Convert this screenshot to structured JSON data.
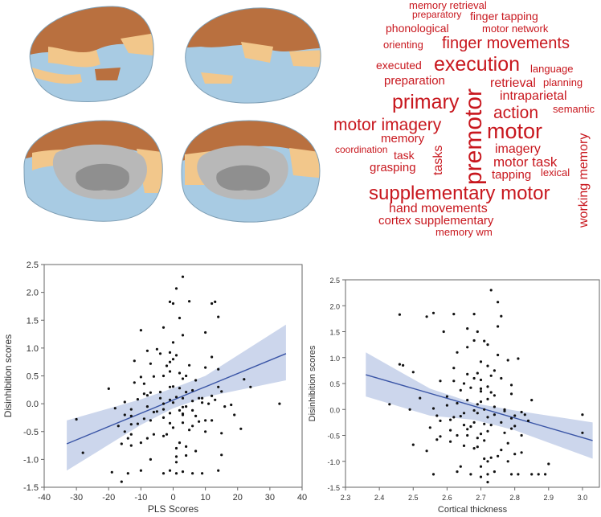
{
  "colors": {
    "dark_orange": "#b9703f",
    "light_orange": "#f2c78b",
    "light_blue": "#a8cbe3",
    "medial_gray": "#b8b8b8",
    "cloud_red": "#c8171e",
    "fit_line": "#3a55a6",
    "ci_band": "#c6d1ea",
    "points": "#111111"
  },
  "brains": {
    "views": [
      {
        "name": "left-lateral"
      },
      {
        "name": "right-lateral"
      },
      {
        "name": "left-medial"
      },
      {
        "name": "right-medial"
      }
    ]
  },
  "word_cloud": [
    {
      "text": "memory retrieval",
      "size": 13
    },
    {
      "text": "preparatory",
      "size": 12
    },
    {
      "text": "finger tapping",
      "size": 14
    },
    {
      "text": "phonological",
      "size": 14
    },
    {
      "text": "motor network",
      "size": 13
    },
    {
      "text": "orienting",
      "size": 13
    },
    {
      "text": "finger movements",
      "size": 20
    },
    {
      "text": "executed",
      "size": 14
    },
    {
      "text": "execution",
      "size": 25
    },
    {
      "text": "language",
      "size": 13
    },
    {
      "text": "preparation",
      "size": 15
    },
    {
      "text": "retrieval",
      "size": 16
    },
    {
      "text": "planning",
      "size": 13
    },
    {
      "text": "intraparietal",
      "size": 16
    },
    {
      "text": "primary",
      "size": 25
    },
    {
      "text": "action",
      "size": 21
    },
    {
      "text": "semantic",
      "size": 13
    },
    {
      "text": "premotor",
      "size": 30
    },
    {
      "text": "motor imagery",
      "size": 21
    },
    {
      "text": "motor",
      "size": 27
    },
    {
      "text": "memory",
      "size": 15
    },
    {
      "text": "imagery",
      "size": 16
    },
    {
      "text": "working memory",
      "size": 16
    },
    {
      "text": "coordination",
      "size": 12
    },
    {
      "text": "task",
      "size": 14
    },
    {
      "text": "tasks",
      "size": 16
    },
    {
      "text": "motor task",
      "size": 17
    },
    {
      "text": "grasping",
      "size": 15
    },
    {
      "text": "tapping",
      "size": 15
    },
    {
      "text": "lexical",
      "size": 13
    },
    {
      "text": "supplementary motor",
      "size": 24
    },
    {
      "text": "hand movements",
      "size": 16
    },
    {
      "text": "cortex supplementary",
      "size": 15
    },
    {
      "text": "memory wm",
      "size": 13
    }
  ],
  "chart_data": [
    {
      "type": "scatter",
      "title": "",
      "xlabel": "PLS Scores",
      "ylabel": "Disinhibition scores",
      "xlim": [
        -40,
        40
      ],
      "ylim": [
        -1.5,
        2.5
      ],
      "xticks": [
        -40,
        -30,
        -20,
        -10,
        0,
        10,
        20,
        30,
        40
      ],
      "yticks": [
        -1.5,
        -1.0,
        -0.5,
        0.0,
        0.5,
        1.0,
        1.5,
        2.0,
        2.5
      ],
      "fit": {
        "x": [
          -33,
          35
        ],
        "y": [
          -0.72,
          0.9
        ]
      },
      "ci_band": {
        "x": [
          -33,
          -10,
          0,
          10,
          35
        ],
        "upper": [
          -0.3,
          0.08,
          0.28,
          0.5,
          1.42
        ],
        "lower": [
          -1.2,
          -0.38,
          -0.08,
          0.12,
          0.42
        ]
      },
      "x": [
        3,
        1,
        -1,
        0,
        13,
        12,
        5,
        14,
        2,
        -3,
        -10,
        10,
        3,
        0,
        -5,
        -8,
        -1,
        1,
        12,
        -12,
        -7,
        -2,
        5,
        10,
        14,
        -1,
        2,
        -3,
        -6,
        -10,
        3,
        7,
        -12,
        -9,
        0,
        -1,
        2,
        6,
        15,
        4,
        -4,
        -7,
        -9,
        12,
        22,
        1,
        9,
        -4,
        -20,
        3,
        -11,
        -1,
        6,
        -15,
        8,
        13,
        0,
        9,
        -3,
        24,
        11,
        18,
        4,
        16,
        3,
        -8,
        -18,
        -13,
        -3,
        2,
        6,
        -5,
        -1,
        3,
        -15,
        -13,
        7,
        19,
        -3,
        -9,
        -7,
        12,
        10,
        -30,
        8,
        3,
        -1,
        -13,
        -17,
        6,
        0,
        33,
        5,
        10,
        15,
        21,
        -2,
        -6,
        -3,
        -8,
        -14,
        -28,
        -10,
        -16,
        -13,
        4,
        15,
        1,
        7,
        4,
        1,
        -7,
        1,
        -1,
        3,
        -14,
        9,
        1,
        -3,
        6,
        -16,
        -19,
        -10,
        14,
        -13,
        -6,
        -11,
        4,
        -1,
        2,
        0,
        14,
        -8,
        -15,
        -4,
        3
      ],
      "y": [
        2.28,
        2.07,
        1.83,
        1.8,
        1.83,
        1.8,
        1.84,
        1.56,
        1.54,
        1.37,
        1.32,
        1.28,
        1.23,
        1.1,
        0.98,
        0.95,
        0.92,
        0.87,
        0.84,
        0.77,
        0.72,
        0.68,
        0.69,
        0.65,
        0.62,
        0.58,
        0.55,
        0.5,
        0.49,
        0.48,
        0.45,
        0.42,
        0.38,
        0.36,
        0.31,
        0.3,
        0.28,
        0.24,
        0.22,
        0.21,
        0.21,
        0.2,
        0.18,
        0.14,
        0.44,
        0.12,
        0.1,
        0.1,
        0.27,
        0.1,
        0.08,
        0.07,
        0.05,
        0.03,
        0.1,
        0.07,
        0.02,
        0.02,
        0.0,
        0.3,
        0.0,
        -0.02,
        -0.05,
        -0.05,
        -0.06,
        -0.05,
        -0.08,
        -0.1,
        -0.1,
        -0.12,
        -0.12,
        -0.14,
        -0.17,
        -0.18,
        -0.2,
        -0.22,
        -0.22,
        -0.2,
        -0.25,
        -0.27,
        -0.3,
        -0.3,
        -0.3,
        -0.28,
        -0.32,
        -0.34,
        -0.35,
        -0.37,
        -0.4,
        -0.4,
        -0.43,
        0.0,
        -0.47,
        -0.5,
        -0.53,
        -0.45,
        -0.55,
        -0.55,
        -0.58,
        -0.62,
        -0.62,
        -0.88,
        -0.7,
        -0.72,
        -0.75,
        -0.77,
        -0.92,
        -0.8,
        -0.85,
        -0.93,
        -0.95,
        -1.0,
        -1.05,
        -1.2,
        -1.22,
        -1.25,
        -1.25,
        -1.25,
        -1.25,
        -1.25,
        -1.4,
        -1.23,
        -1.2,
        -1.2,
        -0.55,
        -0.15,
        -0.36,
        0.5,
        0.75,
        -0.7,
        0.8,
        0.3,
        0.15,
        -0.5,
        0.9,
        -0.2
      ]
    },
    {
      "type": "scatter",
      "title": "",
      "xlabel": "Cortical thickness",
      "ylabel": "Disinhibition scores",
      "xlim": [
        2.3,
        3.05
      ],
      "ylim": [
        -1.5,
        2.5
      ],
      "xticks": [
        2.3,
        2.4,
        2.5,
        2.6,
        2.7,
        2.8,
        2.9,
        3.0
      ],
      "yticks": [
        -1.5,
        -1.0,
        -0.5,
        0.0,
        0.5,
        1.0,
        1.5,
        2.0,
        2.5
      ],
      "fit": {
        "x": [
          2.36,
          3.03
        ],
        "y": [
          0.67,
          -0.6
        ]
      },
      "ci_band": {
        "x": [
          2.36,
          2.55,
          2.68,
          2.8,
          3.03
        ],
        "upper": [
          1.1,
          0.4,
          0.12,
          -0.02,
          -0.25
        ],
        "lower": [
          0.25,
          -0.12,
          -0.2,
          -0.4,
          -0.95
        ]
      },
      "x": [
        2.73,
        2.75,
        2.68,
        2.62,
        2.46,
        2.56,
        2.76,
        2.54,
        2.75,
        2.66,
        2.69,
        2.59,
        2.68,
        2.71,
        2.72,
        2.66,
        2.63,
        2.75,
        2.81,
        2.78,
        2.7,
        2.46,
        2.72,
        2.62,
        2.74,
        2.5,
        2.69,
        2.66,
        2.73,
        2.76,
        2.7,
        2.62,
        2.58,
        2.65,
        2.79,
        2.72,
        2.67,
        2.7,
        2.64,
        2.73,
        2.79,
        2.74,
        2.6,
        2.52,
        2.72,
        2.85,
        2.66,
        2.7,
        2.63,
        2.69,
        2.6,
        2.74,
        2.56,
        2.71,
        2.68,
        2.77,
        2.82,
        2.65,
        2.69,
        2.74,
        2.83,
        2.8,
        2.57,
        2.64,
        3.0,
        2.72,
        2.79,
        2.61,
        2.84,
        2.58,
        2.68,
        2.76,
        2.71,
        2.65,
        2.73,
        2.8,
        2.67,
        2.55,
        2.79,
        2.66,
        2.61,
        2.72,
        2.77,
        2.7,
        2.63,
        2.82,
        2.58,
        2.69,
        2.57,
        2.71,
        2.61,
        2.78,
        2.5,
        2.65,
        2.69,
        2.68,
        2.76,
        3.0,
        2.54,
        2.82,
        2.8,
        2.75,
        2.73,
        2.71,
        2.72,
        2.9,
        2.7,
        2.74,
        2.89,
        2.81,
        2.67,
        2.63,
        2.79,
        2.87,
        2.56,
        2.64,
        2.7,
        2.85,
        2.78,
        2.72,
        2.72,
        2.49,
        2.47,
        2.43,
        2.62,
        2.77,
        2.68,
        2.66,
        2.7
      ],
      "y": [
        2.3,
        2.07,
        1.84,
        1.84,
        1.83,
        1.86,
        1.8,
        1.79,
        1.6,
        1.56,
        1.5,
        1.5,
        1.33,
        1.32,
        1.25,
        1.2,
        1.1,
        1.05,
        0.98,
        0.95,
        0.92,
        0.87,
        0.84,
        0.8,
        0.75,
        0.72,
        0.7,
        0.68,
        0.65,
        0.6,
        0.57,
        0.55,
        0.55,
        0.5,
        0.47,
        0.44,
        0.42,
        0.4,
        0.37,
        0.33,
        0.3,
        0.27,
        0.25,
        0.22,
        0.2,
        0.18,
        0.18,
        0.15,
        0.12,
        0.1,
        0.08,
        0.05,
        0.02,
        0.0,
        -0.02,
        -0.03,
        -0.05,
        -0.07,
        -0.07,
        -0.1,
        -0.1,
        -0.12,
        -0.12,
        -0.13,
        -0.1,
        -0.15,
        -0.17,
        -0.2,
        -0.22,
        -0.22,
        -0.25,
        -0.25,
        -0.28,
        -0.3,
        -0.3,
        -0.32,
        -0.33,
        -0.35,
        -0.37,
        -0.38,
        -0.4,
        -0.42,
        -0.45,
        -0.47,
        -0.5,
        -0.5,
        -0.52,
        -0.55,
        -0.58,
        -0.6,
        -0.62,
        -0.65,
        -0.68,
        -0.7,
        -0.72,
        -0.75,
        -0.78,
        -0.45,
        -0.8,
        -0.83,
        -0.86,
        -0.9,
        -0.93,
        -0.95,
        -1.0,
        -1.05,
        -1.1,
        -1.2,
        -1.25,
        -1.25,
        -1.25,
        -1.2,
        -1.25,
        -1.25,
        -1.25,
        -1.1,
        -1.3,
        -1.25,
        -1.0,
        -1.25,
        -1.4,
        0.0,
        0.85,
        0.1,
        -0.15,
        0.0,
        0.6,
        -0.5,
        0.35
      ]
    }
  ]
}
